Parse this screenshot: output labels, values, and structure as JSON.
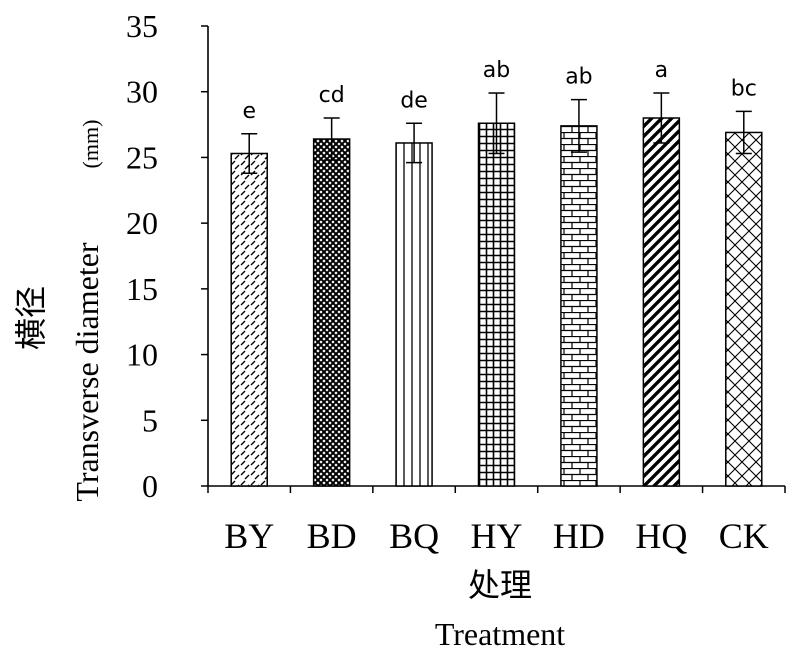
{
  "chart_data": {
    "type": "bar",
    "categories": [
      "BY",
      "BD",
      "BQ",
      "HY",
      "HD",
      "HQ",
      "CK"
    ],
    "values": [
      25.3,
      26.4,
      26.1,
      27.6,
      27.4,
      28.0,
      26.9
    ],
    "errors": [
      1.5,
      1.6,
      1.5,
      2.3,
      2.0,
      1.9,
      1.6
    ],
    "significance": [
      "e",
      "cd",
      "de",
      "ab",
      "ab",
      "a",
      "bc"
    ],
    "patterns": [
      "diagonal-dashes",
      "dense-crosshatch",
      "vertical-lines",
      "grid",
      "brick",
      "thick-diagonal",
      "diagonal-crosshatch"
    ],
    "ylim": [
      0,
      35
    ],
    "yticks": [
      0,
      5,
      10,
      15,
      20,
      25,
      30,
      35
    ],
    "ylabel_cn": "横径",
    "ylabel_en": "Transverse diameter",
    "ylabel_unit": "(mm)",
    "xlabel_cn": "处理",
    "xlabel_en": "Treatment",
    "grid": false,
    "bar_fill": "#ffffff",
    "pattern_color": "#000000"
  }
}
